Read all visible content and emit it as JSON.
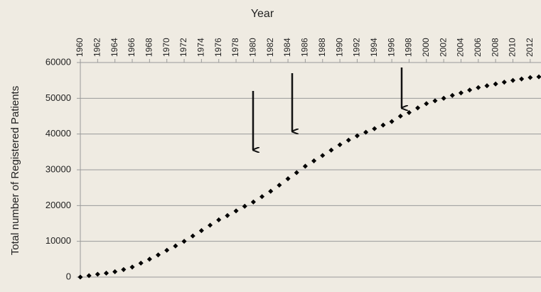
{
  "chart_data": {
    "type": "scatter",
    "title": "Year",
    "y_label": "Total number of Registered Patients",
    "x": [
      1960,
      1961,
      1962,
      1963,
      1964,
      1965,
      1966,
      1967,
      1968,
      1969,
      1970,
      1971,
      1972,
      1973,
      1974,
      1975,
      1976,
      1977,
      1978,
      1979,
      1980,
      1981,
      1982,
      1983,
      1984,
      1985,
      1986,
      1987,
      1988,
      1989,
      1990,
      1991,
      1992,
      1993,
      1994,
      1995,
      1996,
      1997,
      1998,
      1999,
      2000,
      2001,
      2002,
      2003,
      2004,
      2005,
      2006,
      2007,
      2008,
      2009,
      2010,
      2011,
      2012,
      2013
    ],
    "values": [
      0,
      400,
      800,
      1100,
      1500,
      2100,
      2800,
      3900,
      5000,
      6200,
      7500,
      8700,
      10000,
      11500,
      13000,
      14500,
      16000,
      17200,
      18500,
      19800,
      21000,
      22500,
      24000,
      25700,
      27500,
      29200,
      31000,
      32500,
      34000,
      35500,
      37000,
      38300,
      39500,
      40500,
      41500,
      42500,
      43500,
      45000,
      46000,
      47300,
      48500,
      49300,
      50000,
      50800,
      51500,
      52300,
      53000,
      53500,
      54000,
      54500,
      55000,
      55400,
      55800,
      56000
    ],
    "color": "#000000",
    "xlim": [
      1960,
      2013
    ],
    "xticks": [
      1960,
      1962,
      1964,
      1966,
      1968,
      1970,
      1972,
      1974,
      1976,
      1978,
      1980,
      1982,
      1984,
      1986,
      1988,
      1990,
      1992,
      1994,
      1996,
      1998,
      2000,
      2002,
      2004,
      2006,
      2008,
      2010,
      2012
    ],
    "ylim": [
      0,
      60000
    ],
    "yticks": [
      0,
      10000,
      20000,
      30000,
      40000,
      50000,
      60000
    ],
    "grid": true
  }
}
